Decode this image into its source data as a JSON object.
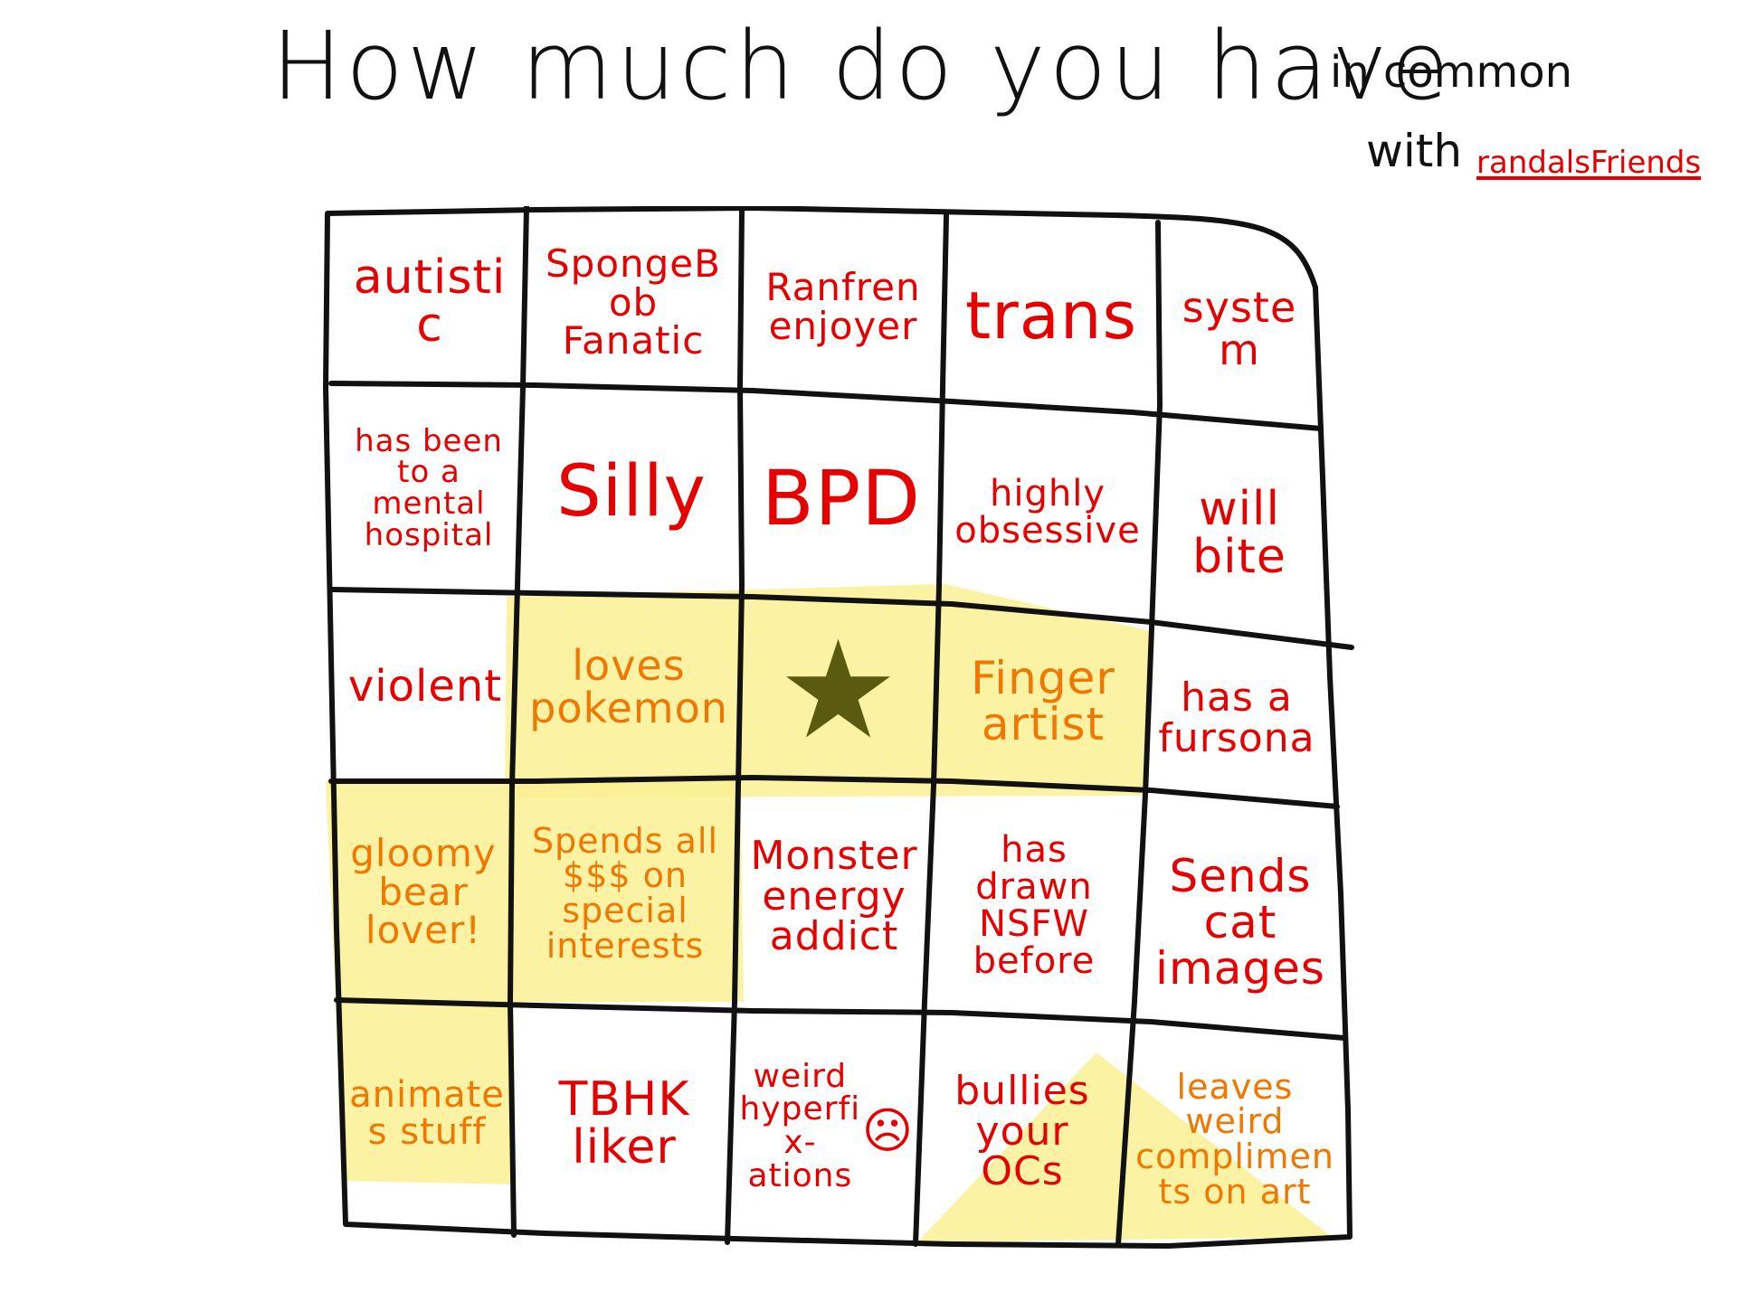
{
  "title": {
    "main": "How much do you have",
    "small": "in common",
    "with": "with",
    "name": "randalsFriends"
  },
  "colors": {
    "ink": "#111111",
    "red_text": "#e60000",
    "orange_text": "#f07800",
    "highlight": "#fbf094",
    "star": "#5a5a10"
  },
  "grid": {
    "rows": [
      [
        {
          "text": "autistic",
          "highlighted": false
        },
        {
          "text": "SpongeBob Fanatic",
          "highlighted": false
        },
        {
          "text": "Ranfren enjoyer",
          "highlighted": false
        },
        {
          "text": "trans",
          "highlighted": false
        },
        {
          "text": "system",
          "highlighted": false
        }
      ],
      [
        {
          "text": "has been to a mental hospital",
          "highlighted": false
        },
        {
          "text": "Silly",
          "highlighted": false
        },
        {
          "text": "BPD",
          "highlighted": false
        },
        {
          "text": "highly obsessive",
          "highlighted": false
        },
        {
          "text": "will bite",
          "highlighted": false
        }
      ],
      [
        {
          "text": "violent",
          "highlighted": false
        },
        {
          "text": "loves pokemon",
          "highlighted": true
        },
        {
          "text": "",
          "highlighted": true,
          "free_space": true,
          "icon": "star-icon"
        },
        {
          "text": "Finger artist",
          "highlighted": true
        },
        {
          "text": "has a fursona",
          "highlighted": false
        }
      ],
      [
        {
          "text": "gloomy bear lover!",
          "highlighted": true
        },
        {
          "text": "Spends all $$$ on special interests",
          "highlighted": true
        },
        {
          "text": "Monster energy addict",
          "highlighted": false
        },
        {
          "text": "has drawn NSFW before",
          "highlighted": false
        },
        {
          "text": "Sends cat images",
          "highlighted": false
        }
      ],
      [
        {
          "text": "animates stuff",
          "highlighted": true
        },
        {
          "text": "TBHK liker",
          "highlighted": false
        },
        {
          "text": "weird hyperfix-ations",
          "highlighted": false,
          "icon": "sad-face-icon"
        },
        {
          "text": "bullies your OCs",
          "highlighted": "partial"
        },
        {
          "text": "leaves weird compliments on art",
          "highlighted": "partial"
        }
      ]
    ]
  }
}
